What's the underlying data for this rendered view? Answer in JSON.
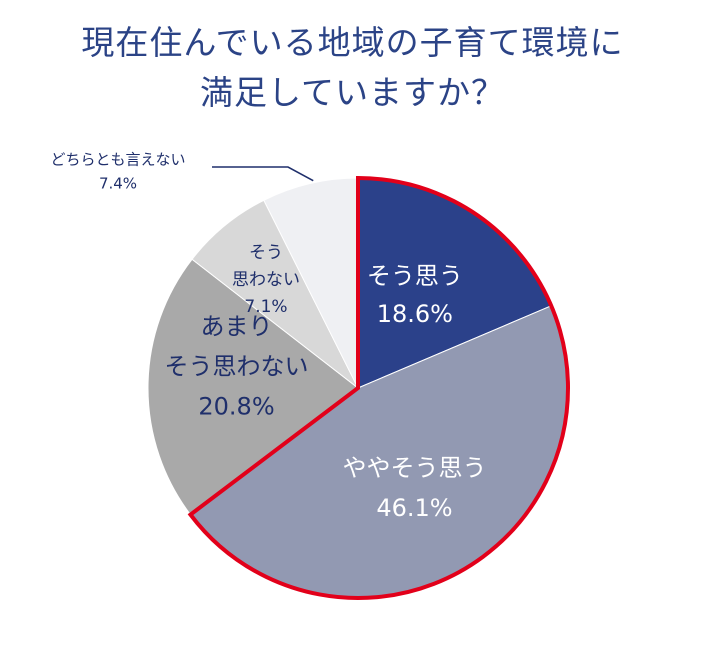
{
  "title": {
    "line1": "現在住んでいる地域の子育て環境に",
    "line2": "満足していますか？"
  },
  "chart_data": {
    "type": "pie",
    "title": "現在住んでいる地域の子育て環境に満足していますか？",
    "unit": "%",
    "slices": [
      {
        "label": "そう思う",
        "value": 18.6,
        "value_label": "18.6%",
        "color": "#2b418a",
        "text_color": "#ffffff",
        "highlighted": true
      },
      {
        "label": "ややそう思う",
        "value": 46.1,
        "value_label": "46.1%",
        "color": "#9299b2",
        "text_color": "#ffffff",
        "highlighted": true
      },
      {
        "label": "あまりそう思わない",
        "value": 20.8,
        "value_label": "20.8%",
        "color": "#a9a9a9",
        "text_color": "#1f2f6b",
        "highlighted": false
      },
      {
        "label": "そう思わない",
        "value": 7.1,
        "value_label": "7.1%",
        "color": "#d8d8d8",
        "text_color": "#1f2f6b",
        "highlighted": false
      },
      {
        "label": "どちらとも言えない",
        "value": 7.4,
        "value_label": "7.4%",
        "color": "#eff0f3",
        "text_color": "#1f2f6b",
        "highlighted": false
      }
    ],
    "highlight_color": "#e2001a",
    "start_angle": "12 o'clock",
    "direction": "clockwise"
  }
}
